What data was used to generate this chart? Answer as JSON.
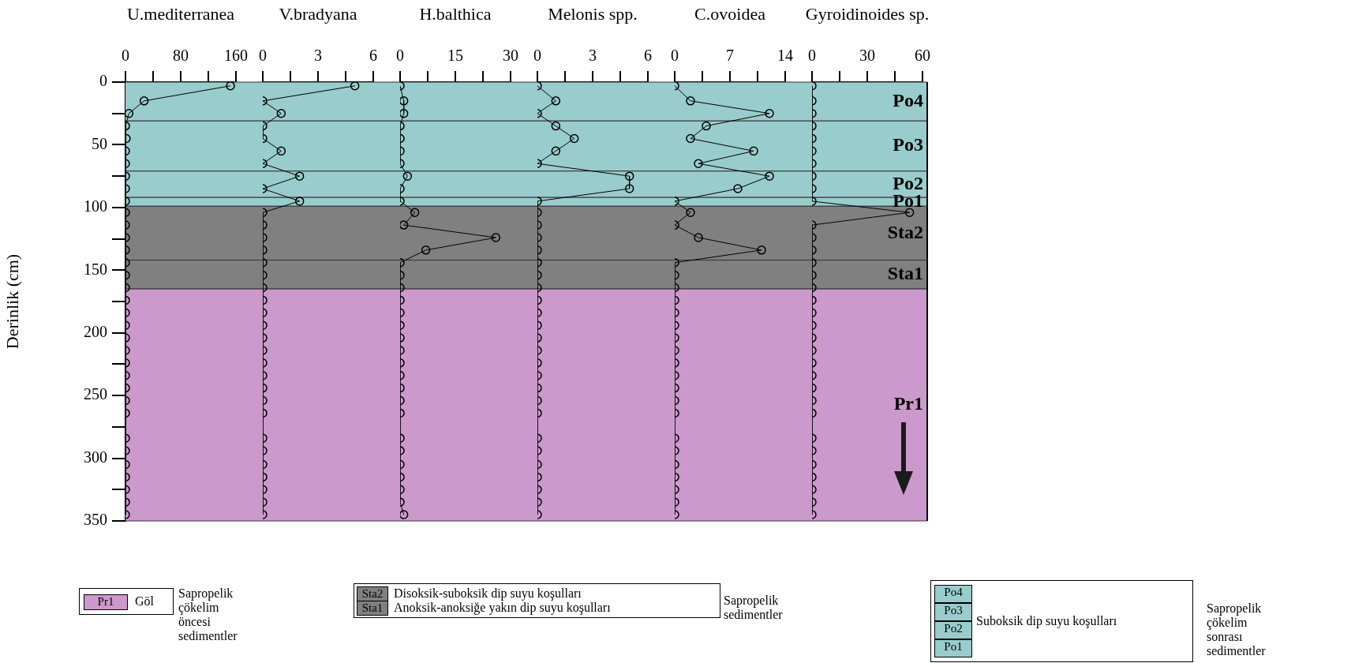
{
  "chart_data": [
    {
      "type": "line",
      "title": "U.mediterranea",
      "ylabel": "Derinlik (cm)",
      "orientation": "horizontal",
      "marker": "circle",
      "x": [
        3,
        15,
        25,
        35,
        45,
        55,
        65,
        75,
        85,
        95,
        104,
        114,
        124,
        134,
        144,
        154,
        164,
        174,
        184,
        194,
        204,
        214,
        224,
        234,
        244,
        254,
        264,
        284,
        294,
        305,
        315,
        325,
        335,
        345
      ],
      "series": [
        {
          "color": "#000000",
          "values": [
            152,
            27,
            5,
            0,
            1,
            0,
            0,
            0,
            0,
            0,
            0,
            0,
            0,
            0,
            0,
            0,
            0,
            0,
            0,
            0,
            0,
            0,
            0,
            0,
            0,
            0,
            0,
            0,
            0,
            0,
            0,
            0,
            0,
            0
          ]
        }
      ],
      "xlim": [
        0,
        160
      ],
      "xticks": [
        0,
        {
          "value": 40,
          "label": null
        },
        80,
        {
          "value": 120,
          "label": null
        },
        160
      ],
      "ylim": [
        350,
        0
      ],
      "yticks": [
        0,
        {
          "value": 25,
          "label": null
        },
        50,
        {
          "value": 75,
          "label": null
        },
        100,
        {
          "value": 125,
          "label": null
        },
        150,
        {
          "value": 175,
          "label": null
        },
        200,
        {
          "value": 225,
          "label": null
        },
        250,
        {
          "value": 275,
          "label": null
        },
        300,
        {
          "value": 325,
          "label": null
        },
        350
      ],
      "bands": [
        {
          "axis": "y",
          "from": 0,
          "to": 31,
          "color": "#99cccc"
        },
        {
          "axis": "y",
          "from": 31,
          "to": 71,
          "color": "#99cccc"
        },
        {
          "axis": "y",
          "from": 71,
          "to": 92,
          "color": "#99cccc"
        },
        {
          "axis": "y",
          "from": 92,
          "to": 99,
          "color": "#99cccc"
        },
        {
          "axis": "y",
          "from": 99,
          "to": 142,
          "color": "#808080"
        },
        {
          "axis": "y",
          "from": 142,
          "to": 165,
          "color": "#808080"
        },
        {
          "axis": "y",
          "from": 165,
          "to": 350,
          "color": "#cc99cc"
        }
      ]
    },
    {
      "type": "line",
      "title": "V.bradyana",
      "orientation": "horizontal",
      "marker": "circle",
      "tick_labels": "x",
      "x": [
        3,
        15,
        25,
        35,
        45,
        55,
        65,
        75,
        85,
        95,
        104,
        114,
        124,
        134,
        144,
        154,
        164,
        174,
        184,
        194,
        204,
        214,
        224,
        234,
        244,
        254,
        264,
        284,
        294,
        305,
        315,
        325,
        335,
        345
      ],
      "series": [
        {
          "color": "#000000",
          "values": [
            5,
            0,
            1,
            0,
            0,
            1,
            0,
            2,
            0,
            2,
            0,
            0,
            0,
            0,
            0,
            0,
            0,
            0,
            0,
            0,
            0,
            0,
            0,
            0,
            0,
            0,
            0,
            0,
            0,
            0,
            0,
            0,
            0,
            0
          ]
        }
      ],
      "xlim": [
        0,
        6
      ],
      "xticks": [
        0,
        {
          "value": 1.5,
          "label": null
        },
        3,
        {
          "value": 4.5,
          "label": null
        },
        6
      ],
      "ylim": [
        350,
        0
      ],
      "bands": [
        {
          "axis": "y",
          "from": 0,
          "to": 31,
          "color": "#99cccc"
        },
        {
          "axis": "y",
          "from": 31,
          "to": 71,
          "color": "#99cccc"
        },
        {
          "axis": "y",
          "from": 71,
          "to": 92,
          "color": "#99cccc"
        },
        {
          "axis": "y",
          "from": 92,
          "to": 99,
          "color": "#99cccc"
        },
        {
          "axis": "y",
          "from": 99,
          "to": 142,
          "color": "#808080"
        },
        {
          "axis": "y",
          "from": 142,
          "to": 165,
          "color": "#808080"
        },
        {
          "axis": "y",
          "from": 165,
          "to": 350,
          "color": "#cc99cc"
        }
      ]
    },
    {
      "type": "line",
      "title": "H.balthica",
      "orientation": "horizontal",
      "marker": "circle",
      "tick_labels": "x",
      "x": [
        3,
        15,
        25,
        35,
        45,
        55,
        65,
        75,
        85,
        95,
        104,
        114,
        124,
        134,
        144,
        154,
        164,
        174,
        184,
        194,
        204,
        214,
        224,
        234,
        244,
        254,
        264,
        284,
        294,
        305,
        315,
        325,
        335,
        345
      ],
      "series": [
        {
          "color": "#000000",
          "values": [
            0,
            1,
            1,
            0,
            0,
            0,
            0,
            2,
            0,
            0,
            4,
            1,
            26,
            7,
            0,
            0,
            0,
            0,
            0,
            0,
            0,
            0,
            0,
            0,
            0,
            0,
            0,
            0,
            0,
            0,
            0,
            0,
            0,
            1
          ]
        }
      ],
      "xlim": [
        0,
        30
      ],
      "xticks": [
        0,
        {
          "value": 7.5,
          "label": null
        },
        15,
        {
          "value": 22.5,
          "label": null
        },
        30
      ],
      "ylim": [
        350,
        0
      ],
      "bands": [
        {
          "axis": "y",
          "from": 0,
          "to": 31,
          "color": "#99cccc"
        },
        {
          "axis": "y",
          "from": 31,
          "to": 71,
          "color": "#99cccc"
        },
        {
          "axis": "y",
          "from": 71,
          "to": 92,
          "color": "#99cccc"
        },
        {
          "axis": "y",
          "from": 92,
          "to": 99,
          "color": "#99cccc"
        },
        {
          "axis": "y",
          "from": 99,
          "to": 142,
          "color": "#808080"
        },
        {
          "axis": "y",
          "from": 142,
          "to": 165,
          "color": "#808080"
        },
        {
          "axis": "y",
          "from": 165,
          "to": 350,
          "color": "#cc99cc"
        }
      ]
    },
    {
      "type": "line",
      "title": "Melonis spp.",
      "orientation": "horizontal",
      "marker": "circle",
      "tick_labels": "x",
      "x": [
        3,
        15,
        25,
        35,
        45,
        55,
        65,
        75,
        85,
        95,
        104,
        114,
        124,
        134,
        144,
        154,
        164,
        174,
        184,
        194,
        204,
        214,
        224,
        234,
        244,
        254,
        264,
        284,
        294,
        305,
        315,
        325,
        335,
        345
      ],
      "series": [
        {
          "color": "#000000",
          "values": [
            0,
            1,
            0,
            1,
            2,
            1,
            0,
            5,
            5,
            0,
            0,
            0,
            0,
            0,
            0,
            0,
            0,
            0,
            0,
            0,
            0,
            0,
            0,
            0,
            0,
            0,
            0,
            0,
            0,
            0,
            0,
            0,
            0,
            0
          ]
        }
      ],
      "xlim": [
        0,
        6
      ],
      "xticks": [
        0,
        {
          "value": 1.5,
          "label": null
        },
        3,
        {
          "value": 4.5,
          "label": null
        },
        6
      ],
      "ylim": [
        350,
        0
      ],
      "bands": [
        {
          "axis": "y",
          "from": 0,
          "to": 31,
          "color": "#99cccc"
        },
        {
          "axis": "y",
          "from": 31,
          "to": 71,
          "color": "#99cccc"
        },
        {
          "axis": "y",
          "from": 71,
          "to": 92,
          "color": "#99cccc"
        },
        {
          "axis": "y",
          "from": 92,
          "to": 99,
          "color": "#99cccc"
        },
        {
          "axis": "y",
          "from": 99,
          "to": 142,
          "color": "#808080"
        },
        {
          "axis": "y",
          "from": 142,
          "to": 165,
          "color": "#808080"
        },
        {
          "axis": "y",
          "from": 165,
          "to": 350,
          "color": "#cc99cc"
        }
      ]
    },
    {
      "type": "line",
      "title": "C.ovoidea",
      "orientation": "horizontal",
      "marker": "circle",
      "tick_labels": "x",
      "x": [
        3,
        15,
        25,
        35,
        45,
        55,
        65,
        75,
        85,
        95,
        104,
        114,
        124,
        134,
        144,
        154,
        164,
        174,
        184,
        194,
        204,
        214,
        224,
        234,
        244,
        254,
        264,
        284,
        294,
        305,
        315,
        325,
        335,
        345
      ],
      "series": [
        {
          "color": "#000000",
          "values": [
            0,
            2,
            12,
            4,
            2,
            10,
            3,
            12,
            8,
            0,
            2,
            0,
            3,
            11,
            0,
            0,
            0,
            0,
            0,
            0,
            0,
            0,
            0,
            0,
            0,
            0,
            0,
            0,
            0,
            0,
            0,
            0,
            0,
            0
          ]
        }
      ],
      "xlim": [
        0,
        14
      ],
      "xticks": [
        0,
        {
          "value": 3.5,
          "label": null
        },
        7,
        {
          "value": 10.5,
          "label": null
        },
        14
      ],
      "ylim": [
        350,
        0
      ],
      "bands": [
        {
          "axis": "y",
          "from": 0,
          "to": 31,
          "color": "#99cccc"
        },
        {
          "axis": "y",
          "from": 31,
          "to": 71,
          "color": "#99cccc"
        },
        {
          "axis": "y",
          "from": 71,
          "to": 92,
          "color": "#99cccc"
        },
        {
          "axis": "y",
          "from": 92,
          "to": 99,
          "color": "#99cccc"
        },
        {
          "axis": "y",
          "from": 99,
          "to": 142,
          "color": "#808080"
        },
        {
          "axis": "y",
          "from": 142,
          "to": 165,
          "color": "#808080"
        },
        {
          "axis": "y",
          "from": 165,
          "to": 350,
          "color": "#cc99cc"
        }
      ]
    },
    {
      "type": "line",
      "title": "Gyroidinoides sp.",
      "orientation": "horizontal",
      "marker": "circle",
      "tick_labels": "x",
      "x": [
        3,
        15,
        25,
        35,
        45,
        55,
        65,
        75,
        85,
        95,
        104,
        114,
        124,
        134,
        144,
        154,
        164,
        174,
        184,
        194,
        204,
        214,
        224,
        234,
        244,
        254,
        264,
        284,
        294,
        305,
        315,
        325,
        335,
        345
      ],
      "series": [
        {
          "color": "#000000",
          "values": [
            0,
            0,
            0,
            0,
            0,
            0,
            0,
            0,
            0,
            0,
            53,
            0,
            0,
            0,
            0,
            0,
            0,
            0,
            0,
            0,
            0,
            0,
            0,
            0,
            0,
            0,
            0,
            0,
            0,
            0,
            0,
            0,
            0,
            0
          ]
        }
      ],
      "xlim": [
        0,
        60
      ],
      "xticks": [
        0,
        {
          "value": 15,
          "label": null
        },
        30,
        {
          "value": 45,
          "label": null
        },
        60
      ],
      "ylim": [
        350,
        0
      ],
      "bands": [
        {
          "axis": "y",
          "from": 0,
          "to": 31,
          "color": "#99cccc",
          "label": "Po4"
        },
        {
          "axis": "y",
          "from": 31,
          "to": 71,
          "color": "#99cccc",
          "label": "Po3"
        },
        {
          "axis": "y",
          "from": 71,
          "to": 92,
          "color": "#99cccc",
          "label": "Po2"
        },
        {
          "axis": "y",
          "from": 92,
          "to": 99,
          "color": "#99cccc",
          "label": "Po1"
        },
        {
          "axis": "y",
          "from": 99,
          "to": 142,
          "color": "#808080",
          "label": "Sta2"
        },
        {
          "axis": "y",
          "from": 142,
          "to": 165,
          "color": "#808080",
          "label": "Sta1"
        },
        {
          "axis": "y",
          "from": 165,
          "to": 350,
          "color": "#cc99cc",
          "label": "Pr1"
        }
      ]
    },
    {
      "type": "other",
      "annotations": [
        "Pr1",
        "Göl",
        "Sapropelik çökelim\nöncesi sedimentler",
        "Sta2",
        "Sta1",
        "Disoksik-suboksik dip suyu koşulları",
        "Anoksik-anoksiğe yakın dip suyu koşulları",
        "Sapropelik sedimentler",
        "Po4",
        "Po3",
        "Po2",
        "Po1",
        "Suboksik dip suyu koşulları",
        "Sapropelik çökelim\nsonrası sedimentler"
      ]
    }
  ]
}
